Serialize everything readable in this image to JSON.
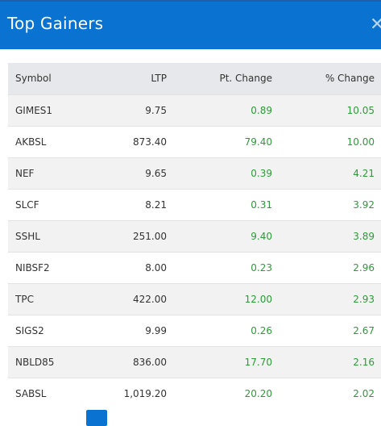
{
  "header": {
    "title": "Top Gainers",
    "close_icon": "close-icon"
  },
  "table": {
    "columns": [
      "Symbol",
      "LTP",
      "Pt. Change",
      "% Change"
    ],
    "rows": [
      {
        "symbol": "GIMES1",
        "ltp": "9.75",
        "pt_change": "0.89",
        "pct_change": "10.05"
      },
      {
        "symbol": "AKBSL",
        "ltp": "873.40",
        "pt_change": "79.40",
        "pct_change": "10.00"
      },
      {
        "symbol": "NEF",
        "ltp": "9.65",
        "pt_change": "0.39",
        "pct_change": "4.21"
      },
      {
        "symbol": "SLCF",
        "ltp": "8.21",
        "pt_change": "0.31",
        "pct_change": "3.92"
      },
      {
        "symbol": "SSHL",
        "ltp": "251.00",
        "pt_change": "9.40",
        "pct_change": "3.89"
      },
      {
        "symbol": "NIBSF2",
        "ltp": "8.00",
        "pt_change": "0.23",
        "pct_change": "2.96"
      },
      {
        "symbol": "TPC",
        "ltp": "422.00",
        "pt_change": "12.00",
        "pct_change": "2.93"
      },
      {
        "symbol": "SIGS2",
        "ltp": "9.99",
        "pt_change": "0.26",
        "pct_change": "2.67"
      },
      {
        "symbol": "NBLD85",
        "ltp": "836.00",
        "pt_change": "17.70",
        "pct_change": "2.16"
      },
      {
        "symbol": "SABSL",
        "ltp": "1,019.20",
        "pt_change": "20.20",
        "pct_change": "2.02"
      }
    ]
  },
  "colors": {
    "header_bg": "#0a72d0",
    "positive": "#2e9a3a",
    "header_row_bg": "#e6e8ec"
  }
}
